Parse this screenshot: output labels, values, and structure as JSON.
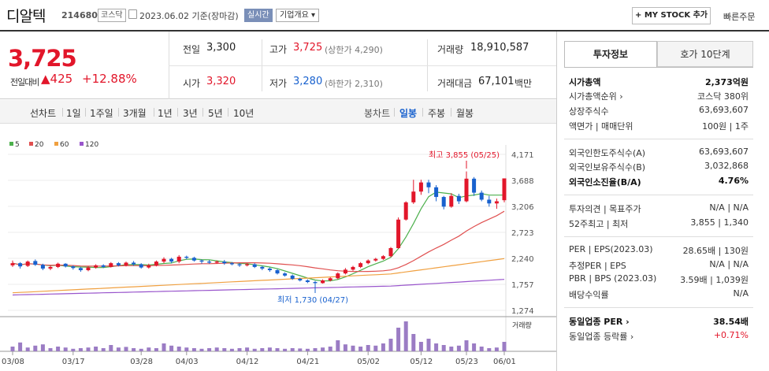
{
  "header": {
    "name": "디알텍",
    "code": "214680",
    "market": "코스닥",
    "date": "2023.06.02 기준(장마감)",
    "realtime": "실시간",
    "company_overview": "기업개요",
    "mystock": "+ MY STOCK 추가",
    "quick_order": "빠른주문"
  },
  "price": {
    "current": "3,725",
    "change_label": "전일대비",
    "change": "▲425",
    "change_pct": "+12.88%",
    "prev_label": "전일",
    "prev": "3,300",
    "high_label": "고가",
    "high": "3,725",
    "upper_limit": "(상한가 4,290)",
    "volume_label": "거래량",
    "volume": "18,910,587",
    "open_label": "시가",
    "open": "3,320",
    "low_label": "저가",
    "low": "3,280",
    "lower_limit": "(하한가 2,310)",
    "amount_label": "거래대금",
    "amount": "67,101",
    "amount_unit": "백만"
  },
  "period_tabs": {
    "line_chart": "선차트",
    "items": [
      "1일",
      "1주일",
      "3개월",
      "1년",
      "3년",
      "5년",
      "10년"
    ],
    "candle_chart": "봉차트",
    "candle_items": [
      "일봉",
      "주봉",
      "월봉"
    ],
    "selected": "일봉"
  },
  "colors": {
    "up": "#e2162a",
    "down": "#1861ce",
    "ma5": "#4cb04c",
    "ma20": "#e05050",
    "ma60": "#f0a040",
    "ma120": "#9955cc",
    "volume": "#9b7cc4"
  },
  "chart_data": {
    "type": "candlestick",
    "legend": [
      "5",
      "20",
      "60",
      "120"
    ],
    "y_ticks": [
      "4,171",
      "3,688",
      "3,206",
      "2,723",
      "2,240",
      "1,757",
      "1,274"
    ],
    "ylim": [
      1274,
      4171
    ],
    "x_ticks": [
      "03/08",
      "03/17",
      "03/28",
      "04/03",
      "04/12",
      "04/21",
      "05/02",
      "05/12",
      "05/23",
      "06/01"
    ],
    "high_annotation": "최고 3,855 (05/25)",
    "low_annotation": "최저 1,730 (04/27)",
    "volume_label": "거래량",
    "candles": [
      [
        2110,
        2150,
        2080,
        2200
      ],
      [
        2150,
        2090,
        2050,
        2170
      ],
      [
        2100,
        2180,
        2080,
        2200
      ],
      [
        2190,
        2120,
        2100,
        2220
      ],
      [
        2120,
        2050,
        2020,
        2140
      ],
      [
        2050,
        2080,
        2020,
        2110
      ],
      [
        2080,
        2140,
        2060,
        2160
      ],
      [
        2140,
        2090,
        2070,
        2150
      ],
      [
        2090,
        2060,
        2030,
        2110
      ],
      [
        2060,
        2020,
        1990,
        2080
      ],
      [
        2020,
        2070,
        2000,
        2090
      ],
      [
        2070,
        2110,
        2050,
        2130
      ],
      [
        2110,
        2080,
        2060,
        2130
      ],
      [
        2080,
        2150,
        2070,
        2170
      ],
      [
        2150,
        2110,
        2090,
        2170
      ],
      [
        2110,
        2160,
        2090,
        2180
      ],
      [
        2160,
        2130,
        2100,
        2190
      ],
      [
        2130,
        2070,
        2050,
        2150
      ],
      [
        2070,
        2110,
        2050,
        2140
      ],
      [
        2110,
        2180,
        2090,
        2200
      ],
      [
        2180,
        2230,
        2150,
        2260
      ],
      [
        2230,
        2180,
        2150,
        2250
      ],
      [
        2180,
        2270,
        2150,
        2300
      ],
      [
        2270,
        2250,
        2220,
        2290
      ],
      [
        2250,
        2200,
        2180,
        2270
      ],
      [
        2200,
        2180,
        2140,
        2220
      ],
      [
        2180,
        2160,
        2140,
        2210
      ],
      [
        2160,
        2180,
        2140,
        2200
      ],
      [
        2180,
        2150,
        2120,
        2210
      ],
      [
        2150,
        2130,
        2110,
        2170
      ],
      [
        2130,
        2110,
        2080,
        2150
      ],
      [
        2110,
        2130,
        2090,
        2150
      ],
      [
        2130,
        2080,
        2060,
        2150
      ],
      [
        2080,
        2050,
        2020,
        2100
      ],
      [
        2050,
        2020,
        1990,
        2070
      ],
      [
        2020,
        1960,
        1940,
        2040
      ],
      [
        1960,
        1920,
        1900,
        1980
      ],
      [
        1920,
        1860,
        1840,
        1940
      ],
      [
        1860,
        1830,
        1810,
        1880
      ],
      [
        1830,
        1800,
        1780,
        1850
      ],
      [
        1800,
        1780,
        1730,
        1820
      ],
      [
        1780,
        1830,
        1770,
        1850
      ],
      [
        1830,
        1870,
        1810,
        1890
      ],
      [
        1870,
        1960,
        1850,
        1980
      ],
      [
        1960,
        2030,
        1940,
        2060
      ],
      [
        2030,
        2080,
        2010,
        2100
      ],
      [
        2080,
        2150,
        2060,
        2170
      ],
      [
        2150,
        2200,
        2130,
        2220
      ],
      [
        2200,
        2230,
        2180,
        2250
      ],
      [
        2230,
        2280,
        2210,
        2300
      ],
      [
        2280,
        2430,
        2260,
        2450
      ],
      [
        2430,
        2960,
        2420,
        3000
      ],
      [
        2960,
        3280,
        2940,
        3300
      ],
      [
        3280,
        3480,
        3250,
        3700
      ],
      [
        3480,
        3650,
        3420,
        3700
      ],
      [
        3650,
        3560,
        3450,
        3700
      ],
      [
        3560,
        3380,
        3300,
        3600
      ],
      [
        3380,
        3200,
        3150,
        3400
      ],
      [
        3200,
        3400,
        3180,
        3450
      ],
      [
        3400,
        3300,
        3250,
        3440
      ],
      [
        3300,
        3720,
        3280,
        3855
      ],
      [
        3720,
        3460,
        3400,
        3750
      ],
      [
        3460,
        3330,
        3300,
        3500
      ],
      [
        3330,
        3260,
        3200,
        3400
      ],
      [
        3260,
        3300,
        3160,
        3350
      ],
      [
        3320,
        3725,
        3280,
        3725
      ]
    ],
    "volumes": [
      0.15,
      0.28,
      0.12,
      0.18,
      0.22,
      0.1,
      0.15,
      0.12,
      0.08,
      0.1,
      0.12,
      0.15,
      0.1,
      0.2,
      0.12,
      0.14,
      0.1,
      0.08,
      0.12,
      0.1,
      0.25,
      0.18,
      0.15,
      0.12,
      0.1,
      0.08,
      0.1,
      0.12,
      0.1,
      0.08,
      0.1,
      0.12,
      0.08,
      0.1,
      0.12,
      0.1,
      0.08,
      0.1,
      0.09,
      0.08,
      0.1,
      0.12,
      0.15,
      0.35,
      0.22,
      0.18,
      0.15,
      0.2,
      0.18,
      0.25,
      0.4,
      0.75,
      0.95,
      0.55,
      0.3,
      0.4,
      0.25,
      0.2,
      0.15,
      0.18,
      0.35,
      0.25,
      0.15,
      0.1,
      0.12,
      0.3
    ]
  },
  "right_panel": {
    "tab_invest": "투자정보",
    "tab_hoga": "호가 10단계",
    "rows": [
      {
        "l": "시가총액",
        "r": "2,373억원",
        "bold": true
      },
      {
        "l": "시가총액순위 ›",
        "r": "코스닥 380위"
      },
      {
        "l": "상장주식수",
        "r": "63,693,607"
      },
      {
        "l": "액면가 | 매매단위",
        "r": "100원 | 1주"
      },
      {
        "l": "외국인한도주식수(A)",
        "r": "63,693,607"
      },
      {
        "l": "외국인보유주식수(B)",
        "r": "3,032,868"
      },
      {
        "l": "외국인소진율(B/A)",
        "r": "4.76%",
        "bold": true
      },
      {
        "l": "투자의견 | 목표주가",
        "r": "N/A | N/A"
      },
      {
        "l": "52주최고 | 최저",
        "r": "3,855 | 1,340"
      },
      {
        "l": "PER | EPS(2023.03)",
        "r": "28.65배 | 130원"
      },
      {
        "l": "추정PER | EPS",
        "r": "N/A | N/A"
      },
      {
        "l": "PBR | BPS (2023.03)",
        "r": "3.59배 | 1,039원"
      },
      {
        "l": "배당수익률",
        "r": "N/A"
      },
      {
        "l": "동일업종 PER ›",
        "r": "38.54배",
        "bold": true
      },
      {
        "l": "동일업종 등락률 ›",
        "r": "+0.71%"
      }
    ]
  }
}
